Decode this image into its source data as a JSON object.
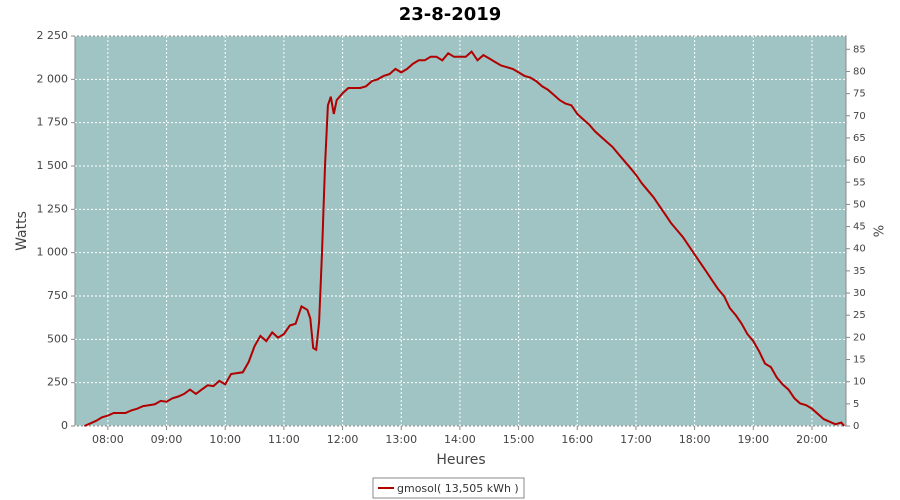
{
  "chart_data": {
    "type": "line",
    "title": "23-8-2019",
    "x_label": "Heures",
    "y_label": "Watts",
    "y2_label": "%",
    "x": [
      7.6,
      7.7,
      7.8,
      7.9,
      8.0,
      8.1,
      8.2,
      8.3,
      8.4,
      8.5,
      8.6,
      8.7,
      8.8,
      8.9,
      9.0,
      9.1,
      9.2,
      9.3,
      9.4,
      9.5,
      9.6,
      9.7,
      9.8,
      9.9,
      10.0,
      10.05,
      10.1,
      10.2,
      10.3,
      10.4,
      10.5,
      10.6,
      10.7,
      10.8,
      10.9,
      11.0,
      11.1,
      11.2,
      11.3,
      11.4,
      11.45,
      11.5,
      11.55,
      11.6,
      11.65,
      11.7,
      11.75,
      11.8,
      11.85,
      11.9,
      12.0,
      12.1,
      12.2,
      12.3,
      12.4,
      12.5,
      12.6,
      12.7,
      12.8,
      12.9,
      13.0,
      13.1,
      13.2,
      13.3,
      13.4,
      13.5,
      13.6,
      13.7,
      13.8,
      13.9,
      14.0,
      14.1,
      14.2,
      14.3,
      14.4,
      14.5,
      14.6,
      14.7,
      14.8,
      14.9,
      15.0,
      15.1,
      15.2,
      15.3,
      15.4,
      15.5,
      15.6,
      15.7,
      15.8,
      15.9,
      16.0,
      16.1,
      16.2,
      16.3,
      16.4,
      16.5,
      16.6,
      16.7,
      16.8,
      16.9,
      17.0,
      17.1,
      17.2,
      17.3,
      17.4,
      17.5,
      17.6,
      17.7,
      17.8,
      17.9,
      18.0,
      18.1,
      18.2,
      18.3,
      18.4,
      18.5,
      18.6,
      18.7,
      18.8,
      18.9,
      19.0,
      19.1,
      19.2,
      19.3,
      19.4,
      19.5,
      19.6,
      19.7,
      19.8,
      19.9,
      20.0,
      20.1,
      20.2,
      20.3,
      20.4,
      20.5,
      20.55
    ],
    "series": [
      {
        "name": "gmosol( 13,505 kWh )",
        "color": "#b00000",
        "values": [
          0,
          15,
          30,
          50,
          60,
          75,
          75,
          75,
          90,
          100,
          115,
          120,
          125,
          145,
          140,
          160,
          170,
          185,
          210,
          185,
          210,
          235,
          230,
          260,
          240,
          270,
          300,
          305,
          310,
          370,
          460,
          520,
          490,
          540,
          510,
          530,
          580,
          590,
          690,
          670,
          620,
          450,
          440,
          600,
          1000,
          1500,
          1850,
          1900,
          1800,
          1880,
          1920,
          1950,
          1950,
          1950,
          1960,
          1990,
          2000,
          2020,
          2030,
          2060,
          2040,
          2060,
          2090,
          2110,
          2110,
          2130,
          2130,
          2110,
          2150,
          2130,
          2130,
          2130,
          2160,
          2110,
          2140,
          2120,
          2100,
          2080,
          2070,
          2060,
          2040,
          2020,
          2010,
          1990,
          1960,
          1940,
          1910,
          1880,
          1860,
          1850,
          1800,
          1770,
          1740,
          1700,
          1670,
          1640,
          1610,
          1570,
          1530,
          1490,
          1450,
          1400,
          1360,
          1320,
          1270,
          1220,
          1170,
          1130,
          1090,
          1040,
          990,
          940,
          890,
          840,
          790,
          750,
          680,
          640,
          590,
          530,
          490,
          430,
          360,
          340,
          280,
          240,
          210,
          160,
          130,
          120,
          100,
          70,
          40,
          25,
          10,
          20,
          0
        ]
      }
    ],
    "xlim": [
      7.44,
      20.58
    ],
    "xticks": [
      {
        "value": 8,
        "label": "08:00"
      },
      {
        "value": 9,
        "label": "09:00"
      },
      {
        "value": 10,
        "label": "10:00"
      },
      {
        "value": 11,
        "label": "11:00"
      },
      {
        "value": 12,
        "label": "12:00"
      },
      {
        "value": 13,
        "label": "13:00"
      },
      {
        "value": 14,
        "label": "14:00"
      },
      {
        "value": 15,
        "label": "15:00"
      },
      {
        "value": 16,
        "label": "16:00"
      },
      {
        "value": 17,
        "label": "17:00"
      },
      {
        "value": 18,
        "label": "18:00"
      },
      {
        "value": 19,
        "label": "19:00"
      },
      {
        "value": 20,
        "label": "20:00"
      }
    ],
    "ylim": [
      0,
      2250
    ],
    "yticks": [
      0,
      250,
      500,
      750,
      {
        "value": 1000,
        "label": "1 000"
      },
      {
        "value": 1250,
        "label": "1 250"
      },
      {
        "value": 1500,
        "label": "1 500"
      },
      {
        "value": 1750,
        "label": "1 750"
      },
      {
        "value": 2000,
        "label": "2 000"
      },
      {
        "value": 2250,
        "label": "2 250"
      }
    ],
    "y2lim": [
      0,
      88
    ],
    "y2ticks": [
      0,
      5,
      10,
      15,
      20,
      25,
      30,
      35,
      40,
      45,
      50,
      55,
      60,
      65,
      70,
      75,
      80,
      85
    ],
    "grid": true,
    "background": "#a0c4c4",
    "legend": "bottom"
  }
}
